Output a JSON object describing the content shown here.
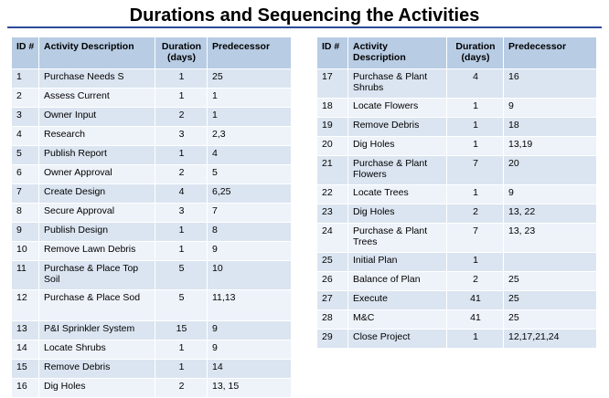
{
  "title": "Durations and Sequencing the Activities",
  "headers": {
    "id": "ID #",
    "description": "Activity Description",
    "duration": "Duration (days)",
    "predecessor": "Predecessor"
  },
  "left_rows": [
    {
      "id": "1",
      "desc": "Purchase Needs S",
      "dur": "1",
      "pred": "25"
    },
    {
      "id": "2",
      "desc": "Assess Current",
      "dur": "1",
      "pred": "1"
    },
    {
      "id": "3",
      "desc": "Owner Input",
      "dur": "2",
      "pred": "1"
    },
    {
      "id": "4",
      "desc": "Research",
      "dur": "3",
      "pred": "2,3"
    },
    {
      "id": "5",
      "desc": "Publish Report",
      "dur": "1",
      "pred": "4"
    },
    {
      "id": "6",
      "desc": "Owner Approval",
      "dur": "2",
      "pred": "5"
    },
    {
      "id": "7",
      "desc": "Create Design",
      "dur": "4",
      "pred": "6,25"
    },
    {
      "id": "8",
      "desc": "Secure Approval",
      "dur": "3",
      "pred": "7"
    },
    {
      "id": "9",
      "desc": "Publish Design",
      "dur": "1",
      "pred": "8"
    },
    {
      "id": "10",
      "desc": "Remove  Lawn Debris",
      "dur": "1",
      "pred": "9"
    },
    {
      "id": "11",
      "desc": "Purchase & Place Top Soil",
      "dur": "5",
      "pred": "10"
    },
    {
      "id": "12",
      "desc": "Purchase  &  Place Sod",
      "dur": "5",
      "pred": "11,13"
    },
    {
      "id": "13",
      "desc": "P&I Sprinkler System",
      "dur": "15",
      "pred": "9"
    },
    {
      "id": "14",
      "desc": "Locate Shrubs",
      "dur": "1",
      "pred": "9"
    },
    {
      "id": "15",
      "desc": "Remove Debris",
      "dur": "1",
      "pred": "14"
    },
    {
      "id": "16",
      "desc": "Dig Holes",
      "dur": "2",
      "pred": "13, 15"
    }
  ],
  "right_rows": [
    {
      "id": "17",
      "desc": "Purchase  & Plant Shrubs",
      "dur": "4",
      "pred": "16"
    },
    {
      "id": "18",
      "desc": "Locate Flowers",
      "dur": "1",
      "pred": "9"
    },
    {
      "id": "19",
      "desc": "Remove Debris",
      "dur": "1",
      "pred": "18"
    },
    {
      "id": "20",
      "desc": "Dig Holes",
      "dur": "1",
      "pred": "13,19"
    },
    {
      "id": "21",
      "desc": "Purchase & Plant Flowers",
      "dur": "7",
      "pred": "20"
    },
    {
      "id": "22",
      "desc": "Locate Trees",
      "dur": "1",
      "pred": "9"
    },
    {
      "id": "23",
      "desc": "Dig Holes",
      "dur": "2",
      "pred": "13, 22"
    },
    {
      "id": "24",
      "desc": "Purchase & Plant Trees",
      "dur": "7",
      "pred": "13, 23"
    },
    {
      "id": "25",
      "desc": "Initial Plan",
      "dur": "1",
      "pred": ""
    },
    {
      "id": "26",
      "desc": "Balance of Plan",
      "dur": "2",
      "pred": "25"
    },
    {
      "id": "27",
      "desc": "Execute",
      "dur": "41",
      "pred": "25"
    },
    {
      "id": "28",
      "desc": "M&C",
      "dur": "41",
      "pred": "25"
    },
    {
      "id": "29",
      "desc": "Close Project",
      "dur": "1",
      "pred": "12,17,21,24"
    }
  ]
}
